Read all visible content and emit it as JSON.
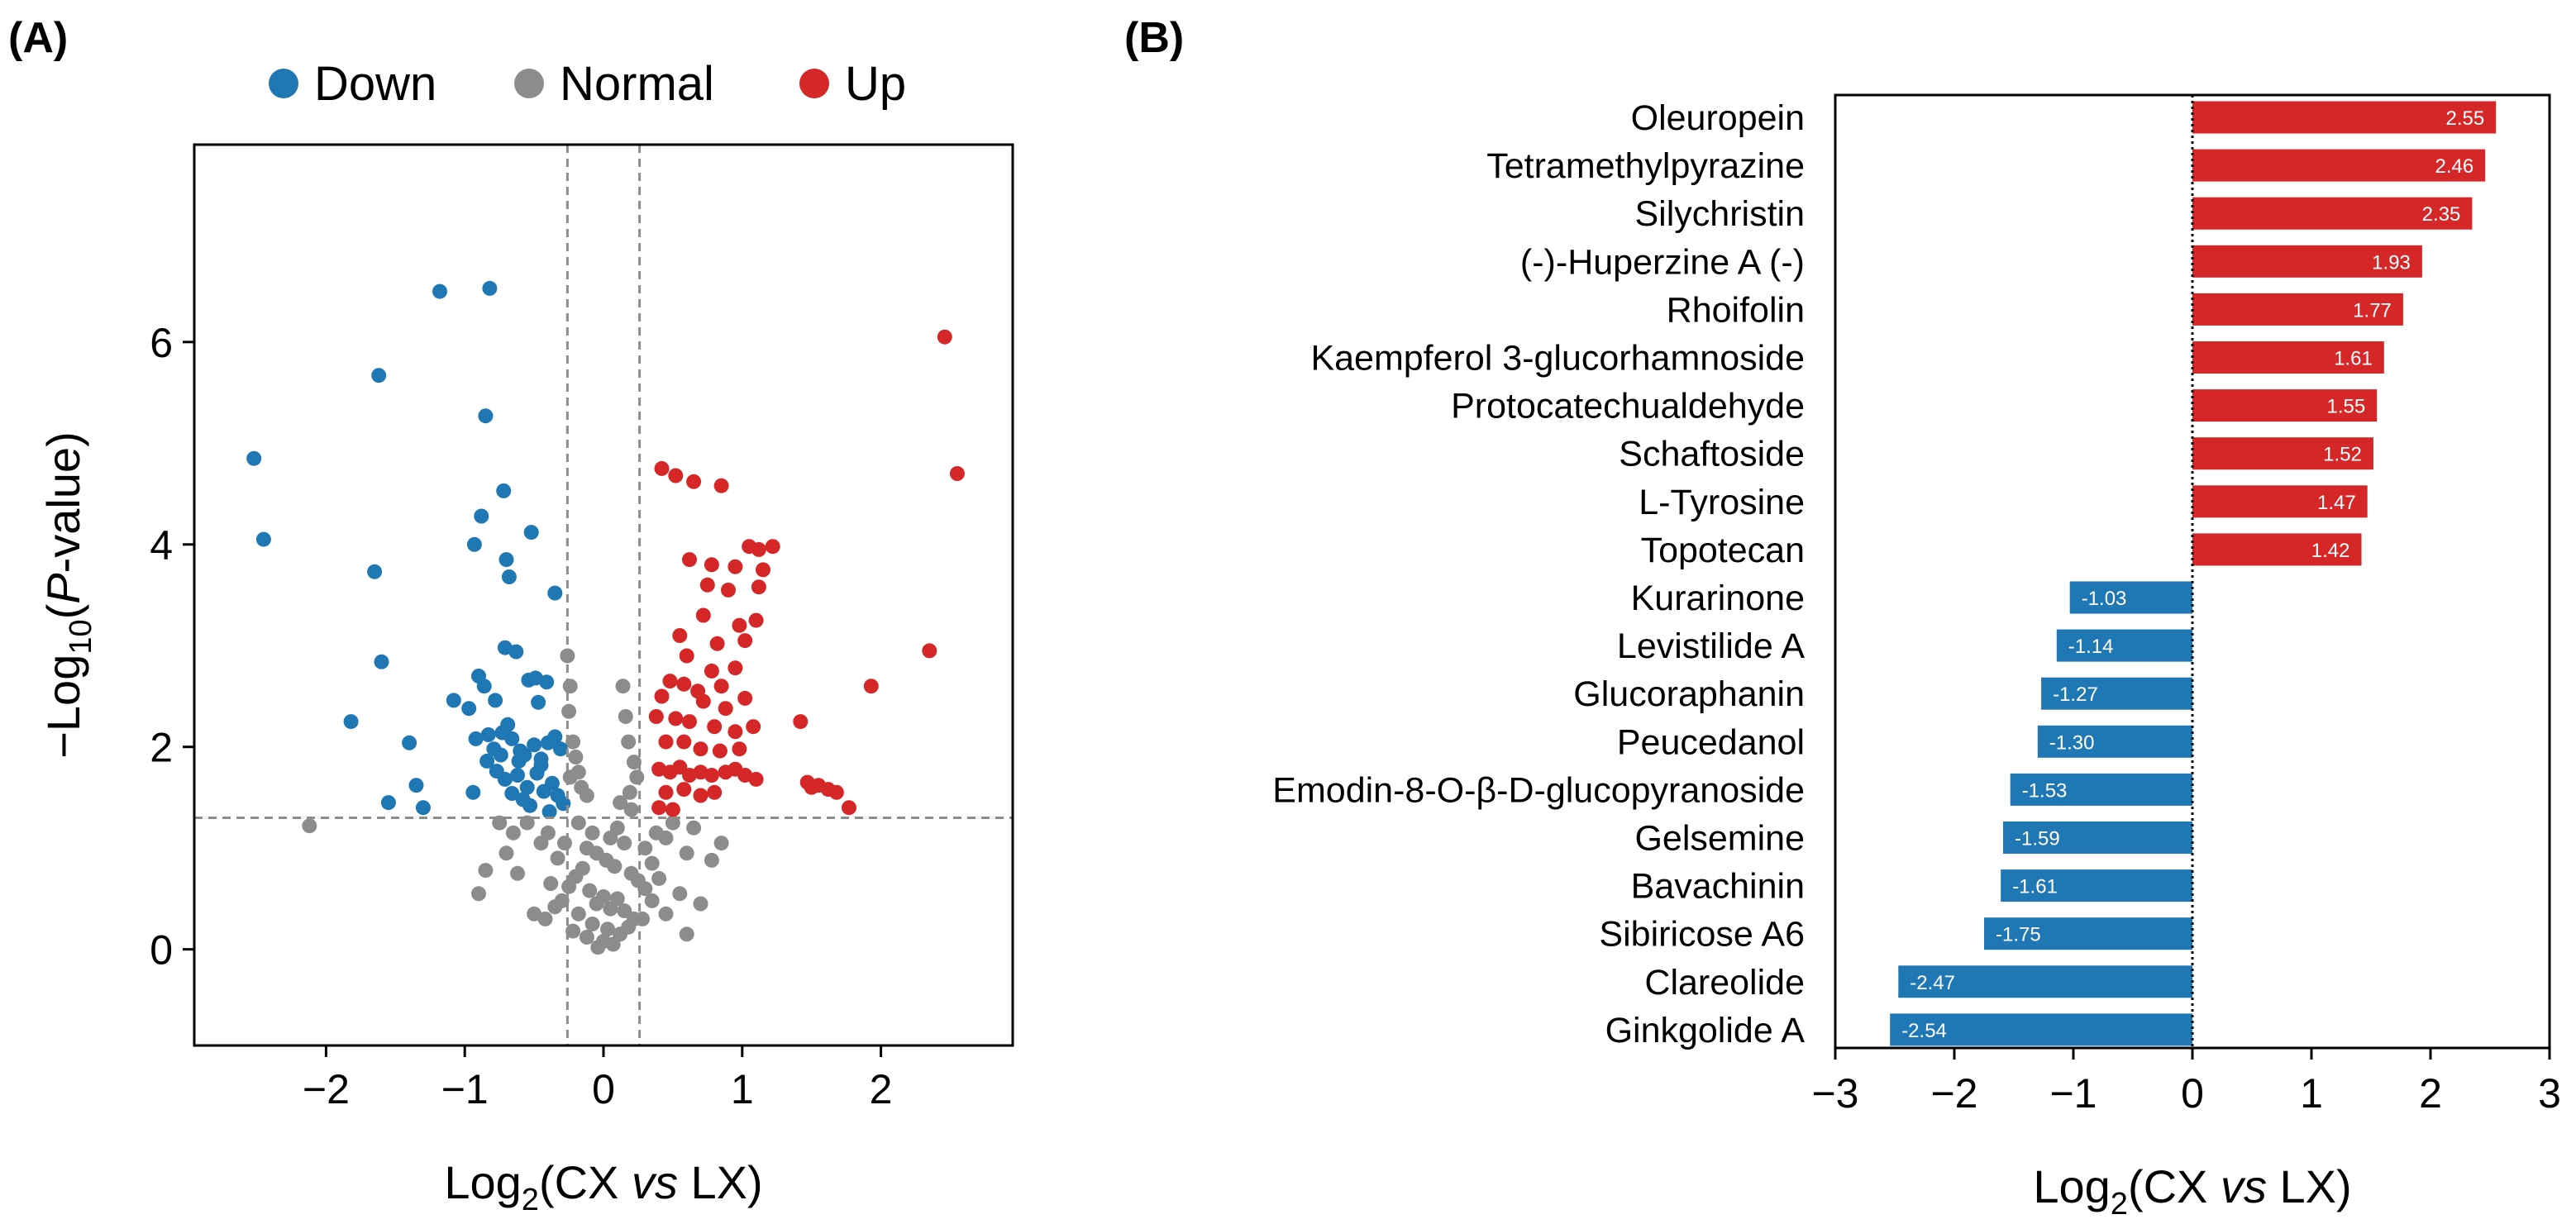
{
  "colors": {
    "down": "#1f77b4",
    "normal": "#8c8c8c",
    "up": "#d62728"
  },
  "panel_a": {
    "label": "(A)"
  },
  "panel_b": {
    "label": "(B)"
  },
  "chart_data": [
    {
      "type": "scatter",
      "title": "",
      "legend": {
        "position": "top",
        "entries": [
          "Down",
          "Normal",
          "Up"
        ]
      },
      "xlabel": {
        "pre": "Log",
        "sub": "2",
        "mid": "(CX ",
        "ital": "vs",
        "post": " LX)"
      },
      "ylabel": {
        "pre": "−Log",
        "sub": "10",
        "mid": "(",
        "ital": "P",
        "post": "-value)"
      },
      "xlim": [
        -2.95,
        2.95
      ],
      "ylim": [
        -0.95,
        7.95
      ],
      "xticks": [
        -2,
        -1,
        0,
        1,
        2
      ],
      "yticks": [
        0,
        2,
        4,
        6
      ],
      "thresholds": {
        "x": [
          -0.26,
          0.26
        ],
        "y": 1.3
      },
      "series": [
        {
          "name": "Down",
          "points": [
            [
              -2.52,
              4.85
            ],
            [
              -2.45,
              4.05
            ],
            [
              -1.62,
              5.67
            ],
            [
              -1.18,
              6.5
            ],
            [
              -0.82,
              6.53
            ],
            [
              -0.85,
              5.27
            ],
            [
              -0.72,
              4.53
            ],
            [
              -0.88,
              4.28
            ],
            [
              -0.93,
              4.0
            ],
            [
              -0.52,
              4.12
            ],
            [
              -1.6,
              2.84
            ],
            [
              -1.65,
              3.73
            ],
            [
              -0.7,
              3.85
            ],
            [
              -0.68,
              3.68
            ],
            [
              -0.35,
              3.52
            ],
            [
              -1.82,
              2.25
            ],
            [
              -1.4,
              2.04
            ],
            [
              -1.35,
              1.62
            ],
            [
              -1.55,
              1.45
            ],
            [
              -1.3,
              1.4
            ],
            [
              -1.08,
              2.46
            ],
            [
              -0.97,
              2.38
            ],
            [
              -0.9,
              2.7
            ],
            [
              -0.86,
              2.6
            ],
            [
              -0.78,
              2.46
            ],
            [
              -0.71,
              2.98
            ],
            [
              -0.63,
              2.94
            ],
            [
              -0.54,
              2.66
            ],
            [
              -0.49,
              2.68
            ],
            [
              -0.47,
              2.44
            ],
            [
              -0.41,
              2.64
            ],
            [
              -0.92,
              2.08
            ],
            [
              -0.83,
              2.12
            ],
            [
              -0.79,
              1.98
            ],
            [
              -0.73,
              2.14
            ],
            [
              -0.69,
              2.22
            ],
            [
              -0.66,
              2.08
            ],
            [
              -0.6,
              1.96
            ],
            [
              -0.57,
              1.92
            ],
            [
              -0.5,
              2.02
            ],
            [
              -0.45,
              1.88
            ],
            [
              -0.4,
              2.04
            ],
            [
              -0.35,
              2.1
            ],
            [
              -0.31,
              1.98
            ],
            [
              -0.84,
              1.86
            ],
            [
              -0.77,
              1.76
            ],
            [
              -0.71,
              1.68
            ],
            [
              -0.62,
              1.72
            ],
            [
              -0.55,
              1.6
            ],
            [
              -0.48,
              1.74
            ],
            [
              -0.43,
              1.56
            ],
            [
              -0.37,
              1.64
            ],
            [
              -0.33,
              1.52
            ],
            [
              -0.58,
              1.48
            ],
            [
              -0.66,
              1.54
            ],
            [
              -0.94,
              1.55
            ],
            [
              -0.29,
              1.44
            ],
            [
              -0.39,
              1.36
            ],
            [
              -0.53,
              1.42
            ],
            [
              -0.45,
              1.82
            ],
            [
              -0.61,
              1.86
            ],
            [
              -0.74,
              1.92
            ]
          ]
        },
        {
          "name": "Normal",
          "points": [
            [
              -2.12,
              1.22
            ],
            [
              -0.26,
              2.9
            ],
            [
              -0.24,
              2.6
            ],
            [
              -0.25,
              2.35
            ],
            [
              -0.22,
              2.05
            ],
            [
              -0.2,
              1.9
            ],
            [
              -0.18,
              1.75
            ],
            [
              -0.24,
              1.7
            ],
            [
              -0.16,
              1.6
            ],
            [
              -0.12,
              1.52
            ],
            [
              0.14,
              2.6
            ],
            [
              0.16,
              2.3
            ],
            [
              0.18,
              2.05
            ],
            [
              0.22,
              1.85
            ],
            [
              0.24,
              1.7
            ],
            [
              0.19,
              1.55
            ],
            [
              0.12,
              1.45
            ],
            [
              0.2,
              1.38
            ],
            [
              -0.75,
              1.25
            ],
            [
              -0.55,
              1.25
            ],
            [
              -0.7,
              0.95
            ],
            [
              -0.85,
              0.78
            ],
            [
              -0.62,
              0.75
            ],
            [
              -0.45,
              1.05
            ],
            [
              0.45,
              1.1
            ],
            [
              0.6,
              0.95
            ],
            [
              0.78,
              0.88
            ],
            [
              0.55,
              0.55
            ],
            [
              0.7,
              0.45
            ],
            [
              -0.9,
              0.55
            ],
            [
              -0.5,
              0.35
            ],
            [
              -0.35,
              0.42
            ],
            [
              0.35,
              0.48
            ],
            [
              0.6,
              0.15
            ],
            [
              -0.18,
              1.25
            ],
            [
              -0.08,
              1.15
            ],
            [
              0.05,
              1.1
            ],
            [
              0.1,
              1.2
            ],
            [
              0.15,
              1.05
            ],
            [
              -0.12,
              1.0
            ],
            [
              -0.05,
              0.95
            ],
            [
              0.02,
              0.88
            ],
            [
              0.08,
              0.82
            ],
            [
              -0.15,
              0.8
            ],
            [
              -0.2,
              0.72
            ],
            [
              0.2,
              0.75
            ],
            [
              0.25,
              0.68
            ],
            [
              -0.25,
              0.62
            ],
            [
              0.3,
              0.6
            ],
            [
              -0.1,
              0.58
            ],
            [
              0.0,
              0.52
            ],
            [
              0.1,
              0.5
            ],
            [
              -0.05,
              0.45
            ],
            [
              0.05,
              0.4
            ],
            [
              0.15,
              0.38
            ],
            [
              -0.18,
              0.35
            ],
            [
              0.22,
              0.3
            ],
            [
              -0.08,
              0.25
            ],
            [
              0.03,
              0.2
            ],
            [
              0.12,
              0.15
            ],
            [
              -0.12,
              0.12
            ],
            [
              0.0,
              0.08
            ],
            [
              0.07,
              0.05
            ],
            [
              -0.04,
              0.02
            ],
            [
              0.18,
              0.22
            ],
            [
              -0.22,
              0.18
            ],
            [
              0.28,
              0.3
            ],
            [
              -0.3,
              0.48
            ],
            [
              0.35,
              0.85
            ],
            [
              -0.33,
              0.9
            ],
            [
              0.4,
              0.7
            ],
            [
              -0.38,
              0.65
            ],
            [
              0.45,
              0.35
            ],
            [
              -0.42,
              0.3
            ],
            [
              -0.28,
              1.05
            ],
            [
              0.3,
              1.0
            ],
            [
              0.38,
              1.15
            ],
            [
              -0.4,
              1.15
            ],
            [
              0.5,
              1.25
            ],
            [
              0.65,
              1.2
            ],
            [
              0.85,
              1.05
            ],
            [
              -0.65,
              1.15
            ]
          ]
        },
        {
          "name": "Up",
          "points": [
            [
              0.42,
              4.75
            ],
            [
              0.52,
              4.68
            ],
            [
              0.65,
              4.62
            ],
            [
              0.85,
              4.58
            ],
            [
              1.05,
              3.98
            ],
            [
              1.12,
              3.95
            ],
            [
              1.22,
              3.98
            ],
            [
              1.15,
              3.75
            ],
            [
              0.62,
              3.85
            ],
            [
              0.78,
              3.8
            ],
            [
              0.95,
              3.78
            ],
            [
              0.75,
              3.6
            ],
            [
              0.9,
              3.55
            ],
            [
              1.12,
              3.58
            ],
            [
              0.72,
              3.3
            ],
            [
              0.98,
              3.2
            ],
            [
              1.1,
              3.25
            ],
            [
              0.55,
              3.1
            ],
            [
              0.82,
              3.02
            ],
            [
              1.02,
              3.05
            ],
            [
              0.6,
              2.9
            ],
            [
              0.78,
              2.75
            ],
            [
              0.95,
              2.78
            ],
            [
              0.48,
              2.65
            ],
            [
              0.58,
              2.62
            ],
            [
              0.68,
              2.55
            ],
            [
              0.85,
              2.6
            ],
            [
              0.42,
              2.5
            ],
            [
              0.72,
              2.45
            ],
            [
              0.88,
              2.38
            ],
            [
              1.02,
              2.48
            ],
            [
              0.38,
              2.3
            ],
            [
              0.52,
              2.28
            ],
            [
              0.62,
              2.25
            ],
            [
              0.8,
              2.2
            ],
            [
              0.95,
              2.15
            ],
            [
              1.08,
              2.2
            ],
            [
              0.45,
              2.05
            ],
            [
              0.58,
              2.05
            ],
            [
              0.7,
              1.98
            ],
            [
              0.84,
              1.96
            ],
            [
              0.98,
              1.98
            ],
            [
              0.4,
              1.78
            ],
            [
              0.48,
              1.75
            ],
            [
              0.55,
              1.8
            ],
            [
              0.62,
              1.72
            ],
            [
              0.7,
              1.75
            ],
            [
              0.78,
              1.72
            ],
            [
              0.88,
              1.75
            ],
            [
              0.95,
              1.78
            ],
            [
              1.02,
              1.72
            ],
            [
              1.1,
              1.68
            ],
            [
              0.45,
              1.55
            ],
            [
              0.58,
              1.58
            ],
            [
              0.7,
              1.52
            ],
            [
              0.8,
              1.55
            ],
            [
              0.4,
              1.4
            ],
            [
              0.5,
              1.38
            ],
            [
              1.42,
              2.25
            ],
            [
              1.55,
              1.62
            ],
            [
              1.62,
              1.58
            ],
            [
              1.68,
              1.55
            ],
            [
              1.77,
              1.4
            ],
            [
              1.93,
              2.6
            ],
            [
              2.35,
              2.95
            ],
            [
              2.46,
              6.05
            ],
            [
              2.55,
              4.7
            ],
            [
              1.5,
              1.6
            ],
            [
              1.47,
              1.65
            ]
          ]
        }
      ]
    },
    {
      "type": "bar",
      "orientation": "horizontal",
      "title": "",
      "xlabel": {
        "pre": "Log",
        "sub": "2",
        "mid": "(CX ",
        "ital": "vs",
        "post": " LX)"
      },
      "xlim": [
        -3,
        3
      ],
      "xticks": [
        -3,
        -2,
        -1,
        0,
        1,
        2,
        3
      ],
      "categories": [
        "Oleuropein",
        "Tetramethylpyrazine",
        "Silychristin",
        "(-)-Huperzine A (-)",
        "Rhoifolin",
        "Kaempferol 3-glucorhamnoside",
        "Protocatechualdehyde",
        "Schaftoside",
        "L-Tyrosine",
        "Topotecan",
        "Kurarinone",
        "Levistilide A",
        "Glucoraphanin",
        "Peucedanol",
        "Emodin-8-O-β-D-glucopyranoside",
        "Gelsemine",
        "Bavachinin",
        "Sibiricose A6",
        "Clareolide",
        "Ginkgolide A"
      ],
      "values": [
        2.55,
        2.46,
        2.35,
        1.93,
        1.77,
        1.61,
        1.55,
        1.52,
        1.47,
        1.42,
        -1.03,
        -1.14,
        -1.27,
        -1.3,
        -1.53,
        -1.59,
        -1.61,
        -1.75,
        -2.47,
        -2.54
      ],
      "value_labels": [
        "2.55",
        "2.46",
        "2.35",
        "1.93",
        "1.77",
        "1.61",
        "1.55",
        "1.52",
        "1.47",
        "1.42",
        "-1.03",
        "-1.14",
        "-1.27",
        "-1.30",
        "-1.53",
        "-1.59",
        "-1.61",
        "-1.75",
        "-2.47",
        "-2.54"
      ]
    }
  ]
}
